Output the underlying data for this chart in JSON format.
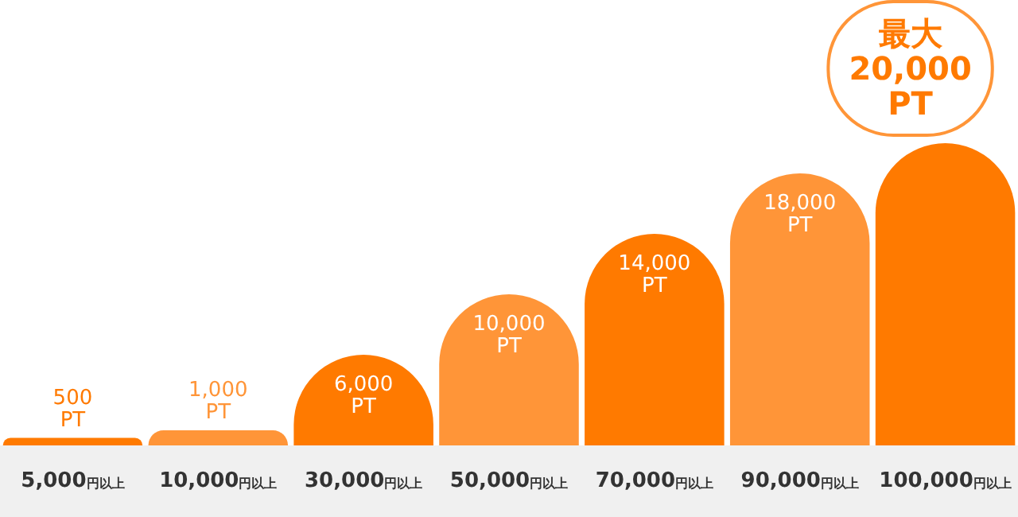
{
  "chart_data": {
    "type": "bar",
    "categories": [
      "5,000円以上",
      "10,000円以上",
      "30,000円以上",
      "50,000円以上",
      "70,000円以上",
      "90,000円以上",
      "100,000円以上"
    ],
    "values": [
      500,
      1000,
      6000,
      10000,
      14000,
      18000,
      20000
    ],
    "colors": [
      "#ff7a00",
      "#ff9538",
      "#ff7a00",
      "#ff9538",
      "#ff7a00",
      "#ff9538",
      "#ff7a00"
    ],
    "value_labels": [
      "500 PT",
      "1,000 PT",
      "6,000 PT",
      "10,000 PT",
      "14,000 PT",
      "18,000 PT",
      "最大 20,000 PT"
    ]
  }
}
